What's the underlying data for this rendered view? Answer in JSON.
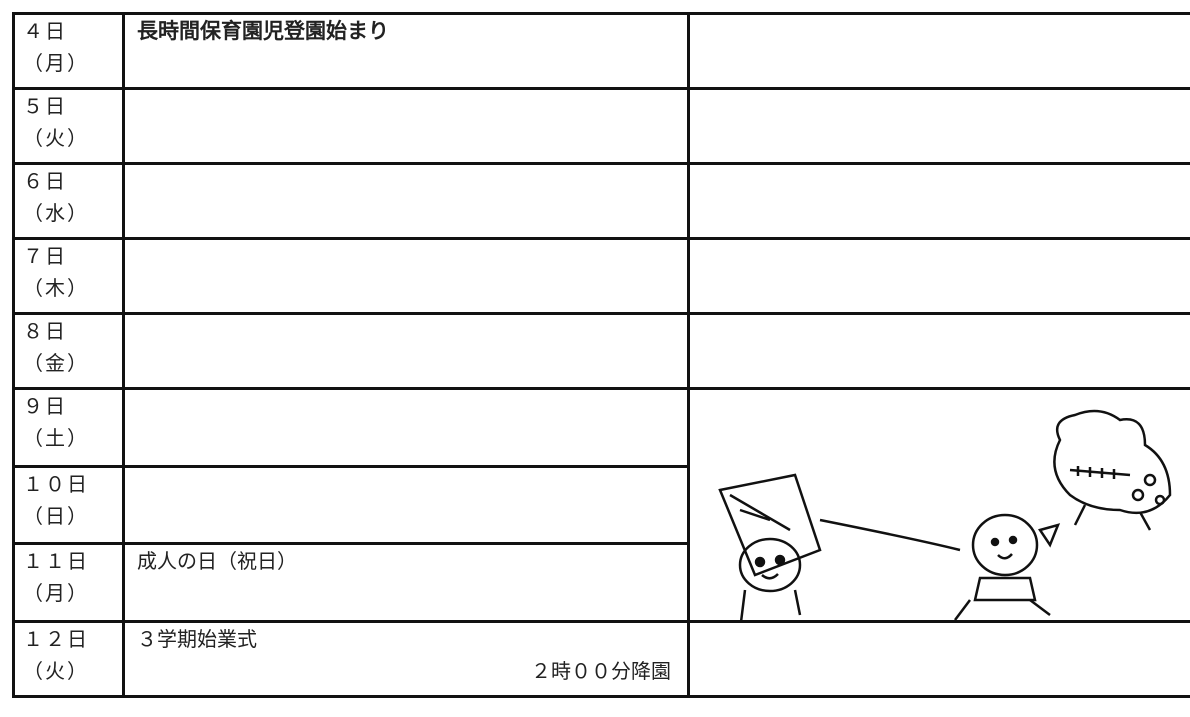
{
  "table": {
    "rows": [
      {
        "date": "４日",
        "day": "（月）",
        "event": "長時間保育園児登園始まり"
      },
      {
        "date": "５日",
        "day": "（火）"
      },
      {
        "date": "６日",
        "day": "（水）"
      },
      {
        "date": "７日",
        "day": "（木）"
      },
      {
        "date": "８日",
        "day": "（金）"
      },
      {
        "date": "９日",
        "day": "（土）"
      },
      {
        "date": "１０日",
        "day": "（日）"
      },
      {
        "date": "１１日",
        "day": "（月）",
        "event": "成人の日（祝日）"
      },
      {
        "date": "１２日",
        "day": "（火）",
        "event": "３学期始業式",
        "note": "２時００分降園"
      }
    ]
  }
}
